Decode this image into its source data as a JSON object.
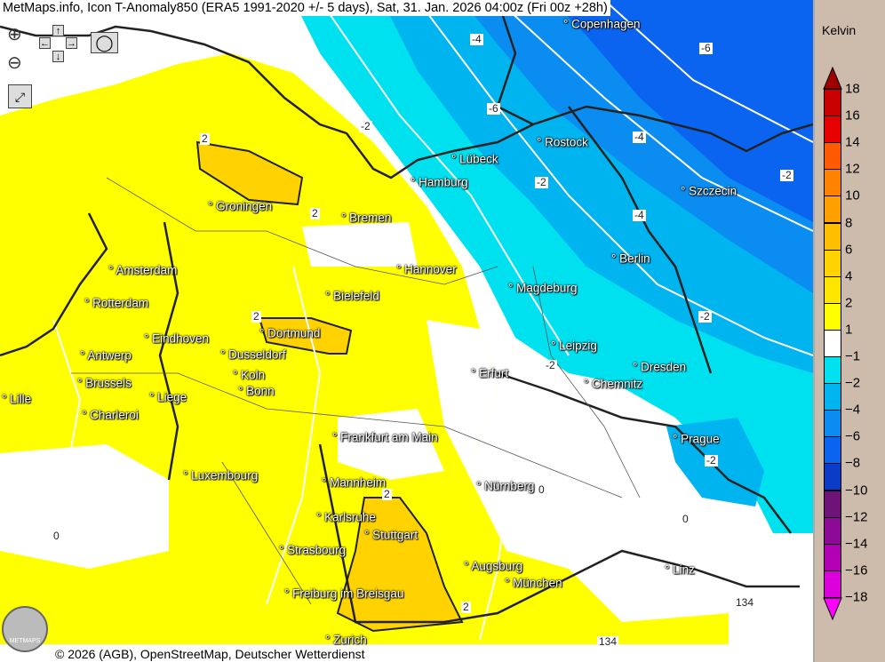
{
  "title": "MetMaps.info, Icon T-Anomaly850 (ERA5 1991-2020 +/- 5 days), Sat, 31. Jan. 2026 04:00z (Fri 00z +28h)",
  "copyright": "© 2026 (AGB), OpenStreetMap, Deutscher Wetterdienst",
  "logo_text": "METMAPS",
  "controls": [
    "zoom-in",
    "zoom-out",
    "pan-up",
    "pan-left",
    "pan-right",
    "pan-down",
    "screenshot",
    "fullscreen"
  ],
  "legend": {
    "unit": "Kelvin",
    "labels": [
      "18",
      "16",
      "14",
      "12",
      "10",
      "8",
      "6",
      "4",
      "2",
      "1",
      "−1",
      "−2",
      "−4",
      "−6",
      "−8",
      "−10",
      "−12",
      "−14",
      "−16",
      "−18"
    ],
    "colors": [
      "#a00000",
      "#c80000",
      "#e60000",
      "#ff5a00",
      "#ff8200",
      "#ffa000",
      "#ffbe00",
      "#ffd200",
      "#ffe600",
      "#ffff00",
      "#ffffff",
      "#00e1f0",
      "#00b4f0",
      "#0a8cf0",
      "#0a64f0",
      "#0a3cc8",
      "#6e1478",
      "#8c0a96",
      "#b400b4",
      "#dc00dc",
      "#ff00ff"
    ]
  },
  "cities": [
    "Copenhagen",
    "Rostock",
    "Lübeck",
    "Hamburg",
    "Szczecin",
    "Groningen",
    "Bremen",
    "Berlin",
    "Amsterdam",
    "Hannover",
    "Magdeburg",
    "Bielefeld",
    "Rotterdam",
    "Dortmund",
    "Eindhoven",
    "Leipzig",
    "Antwerp",
    "Dusseldorf",
    "Dresden",
    "Erfurt",
    "Koln",
    "Brussels",
    "Chemnitz",
    "Lille",
    "Liege",
    "Bonn",
    "Charleroi",
    "Frankfurt am Main",
    "Prague",
    "Luxembourg",
    "Mannheim",
    "Nürnberg",
    "Karlsruhe",
    "Stuttgart",
    "Strasbourg",
    "Augsburg",
    "Linz",
    "München",
    "Freiburg im Breisgau",
    "Zurich"
  ],
  "contour_labels": [
    "-4",
    "-6",
    "-2",
    "-4",
    "-6",
    "-2",
    "-4",
    "-2",
    "-2",
    "-2",
    "2",
    "2",
    "2",
    "2",
    "2",
    "0",
    "0",
    "0",
    "134",
    "134",
    "-2"
  ]
}
